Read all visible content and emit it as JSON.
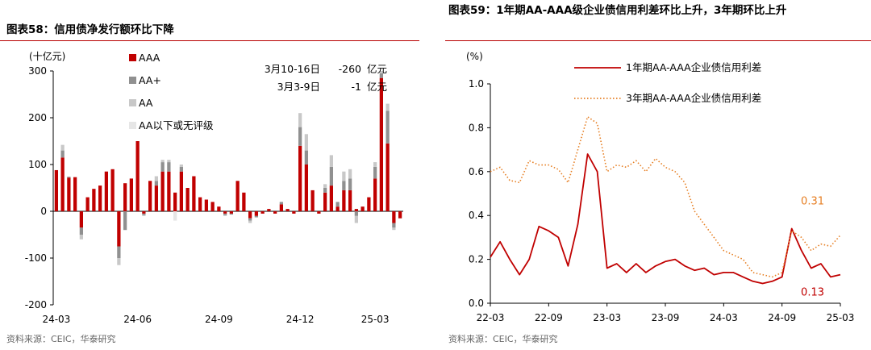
{
  "chart_data": [
    {
      "type": "bar",
      "stacked": true,
      "title": "图表58：信用债净发行额环比下降",
      "ylabel": "(十亿元)",
      "ylim": [
        -200,
        300
      ],
      "yticks": [
        -200,
        -100,
        0,
        100,
        200,
        300
      ],
      "xtick_labels": [
        {
          "i": 0,
          "label": "24-03"
        },
        {
          "i": 13,
          "label": "24-06"
        },
        {
          "i": 26,
          "label": "24-09"
        },
        {
          "i": 39,
          "label": "24-12"
        },
        {
          "i": 51,
          "label": "25-03"
        }
      ],
      "series": [
        {
          "name": "AAA",
          "color": "#c00000",
          "values": [
            88,
            115,
            72,
            73,
            -35,
            30,
            48,
            55,
            85,
            90,
            -75,
            60,
            70,
            150,
            -5,
            65,
            55,
            85,
            85,
            40,
            85,
            50,
            75,
            30,
            25,
            20,
            10,
            -5,
            -5,
            65,
            40,
            -15,
            -10,
            -5,
            5,
            -5,
            15,
            5,
            -5,
            140,
            100,
            45,
            -5,
            40,
            55,
            10,
            45,
            45,
            5,
            10,
            30,
            70,
            285,
            145,
            -25,
            -15
          ],
          "neg": [
            0,
            0,
            0,
            0,
            -35,
            0,
            0,
            0,
            0,
            0,
            -75,
            0,
            0,
            0,
            -5,
            0,
            0,
            0,
            0,
            0,
            0,
            0,
            0,
            0,
            0,
            0,
            0,
            -5,
            -5,
            0,
            0,
            -15,
            -10,
            -5,
            0,
            -5,
            0,
            0,
            -5,
            0,
            0,
            0,
            -5,
            0,
            0,
            0,
            0,
            0,
            0,
            0,
            0,
            0,
            0,
            0,
            -25,
            -15
          ]
        },
        {
          "name": "AA+",
          "color": "#909090",
          "values": [
            0,
            15,
            2,
            0,
            -15,
            0,
            0,
            0,
            0,
            0,
            -25,
            -40,
            0,
            0,
            -3,
            0,
            10,
            20,
            20,
            0,
            10,
            0,
            0,
            0,
            0,
            0,
            0,
            -3,
            -2,
            0,
            0,
            -5,
            -3,
            0,
            0,
            0,
            5,
            0,
            0,
            40,
            30,
            0,
            0,
            10,
            40,
            10,
            20,
            25,
            -10,
            0,
            0,
            25,
            10,
            70,
            -10,
            0
          ],
          "neg": [
            0,
            0,
            0,
            0,
            -15,
            0,
            0,
            0,
            0,
            0,
            -25,
            -40,
            0,
            0,
            -3,
            0,
            0,
            0,
            0,
            0,
            0,
            0,
            0,
            0,
            0,
            0,
            0,
            -3,
            -2,
            0,
            0,
            -5,
            -3,
            0,
            0,
            0,
            0,
            0,
            0,
            0,
            0,
            0,
            0,
            0,
            0,
            0,
            0,
            0,
            -10,
            0,
            0,
            0,
            0,
            0,
            -10,
            0
          ]
        },
        {
          "name": "AA",
          "color": "#c8c8c8",
          "values": [
            0,
            12,
            0,
            0,
            -10,
            0,
            0,
            0,
            0,
            0,
            -15,
            0,
            0,
            0,
            -2,
            0,
            10,
            5,
            5,
            0,
            5,
            0,
            0,
            0,
            0,
            0,
            0,
            -2,
            0,
            0,
            0,
            -5,
            0,
            0,
            0,
            0,
            0,
            0,
            0,
            30,
            35,
            0,
            0,
            8,
            25,
            0,
            20,
            20,
            -15,
            0,
            0,
            10,
            5,
            15,
            -5,
            0
          ],
          "neg": [
            0,
            0,
            0,
            0,
            -10,
            0,
            0,
            0,
            0,
            0,
            -15,
            0,
            0,
            0,
            -2,
            0,
            0,
            0,
            0,
            0,
            0,
            0,
            0,
            0,
            0,
            0,
            0,
            -2,
            0,
            0,
            0,
            -5,
            0,
            0,
            0,
            0,
            0,
            0,
            0,
            0,
            0,
            0,
            0,
            0,
            0,
            0,
            0,
            0,
            -15,
            0,
            0,
            0,
            0,
            0,
            -5,
            0
          ]
        },
        {
          "name": "AA以下或无评级",
          "color": "#e6e6e6",
          "values": [
            0,
            0,
            0,
            0,
            0,
            0,
            0,
            0,
            0,
            0,
            0,
            0,
            0,
            0,
            0,
            0,
            0,
            0,
            0,
            -20,
            0,
            0,
            0,
            0,
            0,
            0,
            0,
            0,
            0,
            0,
            0,
            0,
            0,
            0,
            0,
            0,
            0,
            0,
            0,
            0,
            0,
            0,
            0,
            0,
            0,
            0,
            0,
            0,
            0,
            0,
            0,
            0,
            0,
            0,
            0,
            0
          ]
        }
      ],
      "annotations": [
        {
          "label": "3月10-16日",
          "value": "-260",
          "unit": "亿元"
        },
        {
          "label": "3月3-9日",
          "value": "-1",
          "unit": "亿元"
        }
      ],
      "legend": "top-left"
    },
    {
      "type": "line",
      "title": "图表59：1年期AA-AAA级企业债信用利差环比上升，3年期环比上升",
      "ylabel": "(%)",
      "ylim": [
        0.0,
        1.0
      ],
      "yticks": [
        "0.0",
        "0.2",
        "0.4",
        "0.6",
        "0.8",
        "1.0"
      ],
      "x_range": [
        "2022-03",
        "2025-03"
      ],
      "xtick_labels": [
        "22-03",
        "22-09",
        "23-03",
        "23-09",
        "24-03",
        "24-09",
        "25-03"
      ],
      "series": [
        {
          "name": "1年期AA-AAA企业债信用利差",
          "color": "#c00000",
          "style": "solid",
          "x": [
            "2022-03",
            "2022-04",
            "2022-05",
            "2022-06",
            "2022-07",
            "2022-08",
            "2022-09",
            "2022-10",
            "2022-11",
            "2022-12",
            "2023-01",
            "2023-02",
            "2023-03",
            "2023-04",
            "2023-05",
            "2023-06",
            "2023-07",
            "2023-08",
            "2023-09",
            "2023-10",
            "2023-11",
            "2023-12",
            "2024-01",
            "2024-02",
            "2024-03",
            "2024-04",
            "2024-05",
            "2024-06",
            "2024-07",
            "2024-08",
            "2024-09",
            "2024-10",
            "2024-11",
            "2024-12",
            "2025-01",
            "2025-02",
            "2025-03"
          ],
          "y": [
            0.21,
            0.28,
            0.2,
            0.13,
            0.2,
            0.35,
            0.33,
            0.3,
            0.17,
            0.36,
            0.68,
            0.6,
            0.16,
            0.18,
            0.14,
            0.18,
            0.14,
            0.17,
            0.19,
            0.2,
            0.17,
            0.15,
            0.16,
            0.13,
            0.14,
            0.14,
            0.12,
            0.1,
            0.09,
            0.1,
            0.12,
            0.34,
            0.24,
            0.16,
            0.18,
            0.12,
            0.13
          ]
        },
        {
          "name": "3年期AA-AAA企业债信用利差",
          "color": "#e67e22",
          "style": "dotted",
          "x": [
            "2022-03",
            "2022-04",
            "2022-05",
            "2022-06",
            "2022-07",
            "2022-08",
            "2022-09",
            "2022-10",
            "2022-11",
            "2022-12",
            "2023-01",
            "2023-02",
            "2023-03",
            "2023-04",
            "2023-05",
            "2023-06",
            "2023-07",
            "2023-08",
            "2023-09",
            "2023-10",
            "2023-11",
            "2023-12",
            "2024-01",
            "2024-02",
            "2024-03",
            "2024-04",
            "2024-05",
            "2024-06",
            "2024-07",
            "2024-08",
            "2024-09",
            "2024-10",
            "2024-11",
            "2024-12",
            "2025-01",
            "2025-02",
            "2025-03"
          ],
          "y": [
            0.6,
            0.62,
            0.56,
            0.55,
            0.65,
            0.63,
            0.63,
            0.61,
            0.55,
            0.7,
            0.85,
            0.82,
            0.6,
            0.63,
            0.62,
            0.65,
            0.6,
            0.66,
            0.62,
            0.6,
            0.55,
            0.42,
            0.36,
            0.3,
            0.24,
            0.22,
            0.2,
            0.14,
            0.13,
            0.12,
            0.14,
            0.33,
            0.3,
            0.24,
            0.27,
            0.26,
            0.31
          ]
        }
      ],
      "end_labels": [
        {
          "series": 1,
          "text": "0.31",
          "color": "#e67e22"
        },
        {
          "series": 0,
          "text": "0.13",
          "color": "#c00000"
        }
      ],
      "legend": "top-right"
    }
  ],
  "footer": {
    "left_source": "资料来源：CEIC，华泰研究",
    "right_source": "资料来源：CEIC，华泰研究"
  }
}
